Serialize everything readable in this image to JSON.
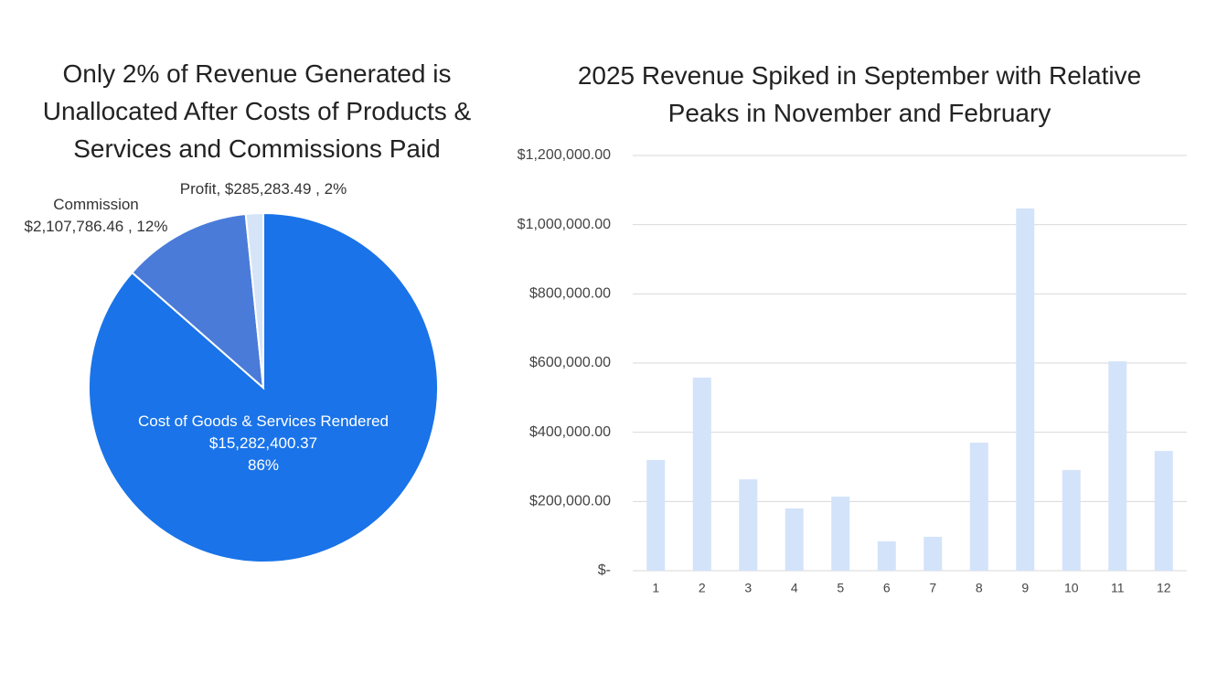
{
  "chart_data": [
    {
      "type": "pie",
      "title": "Only 2% of Revenue Generated is Unallocated After Costs of Products & Services and Commissions Paid",
      "labels": [
        "Cost of Goods & Services Rendered\n$15,282,400.37\n86%",
        "Commission\n$2,107,786.46 , 12%",
        "Profit, $285,283.49 , 2%"
      ],
      "values": [
        15282400.37,
        2107786.46,
        285283.49
      ],
      "colors": [
        "#1a73e8",
        "#4a7bd9",
        "#d6e4f7"
      ]
    },
    {
      "type": "bar",
      "title": "2025 Revenue Spiked in September with Relative Peaks in November and February",
      "categories": [
        "1",
        "2",
        "3",
        "4",
        "5",
        "6",
        "7",
        "8",
        "9",
        "10",
        "11",
        "12"
      ],
      "values": [
        320000,
        558000,
        264000,
        180000,
        214000,
        85000,
        98000,
        370000,
        1047000,
        291000,
        605000,
        346000
      ],
      "color": "#d3e3fa",
      "ylim": [
        0,
        1200000
      ],
      "yticks": [
        {
          "value": 0,
          "label": "$-"
        },
        {
          "value": 200000,
          "label": "$200,000.00"
        },
        {
          "value": 400000,
          "label": "$400,000.00"
        },
        {
          "value": 600000,
          "label": "$600,000.00"
        },
        {
          "value": 800000,
          "label": "$800,000.00"
        },
        {
          "value": 1000000,
          "label": "$1,000,000.00"
        },
        {
          "value": 1200000,
          "label": "$1,200,000.00"
        }
      ],
      "grid": true
    }
  ]
}
